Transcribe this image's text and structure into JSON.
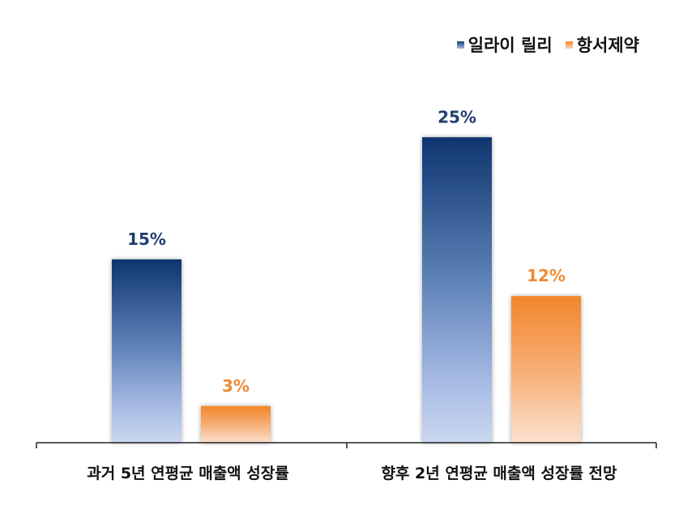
{
  "chart_data": {
    "type": "bar",
    "categories": [
      "과거 5년 연평균 매출액 성장률",
      "향후 2년 연평균 매출액 성장률 전망"
    ],
    "series": [
      {
        "name": "일라이 릴리",
        "values": [
          15,
          25
        ],
        "labels": [
          "15%",
          "25%"
        ],
        "color": "#153d78",
        "label_color": "#1f3f6e"
      },
      {
        "name": "항서제약",
        "values": [
          3,
          12
        ],
        "labels": [
          "3%",
          "12%"
        ],
        "color": "#f28a2e",
        "label_color": "#ee8a35"
      }
    ],
    "ylim": [
      0,
      30
    ],
    "legend_position": "top-right",
    "grid": false,
    "title": "",
    "xlabel": "",
    "ylabel": ""
  }
}
